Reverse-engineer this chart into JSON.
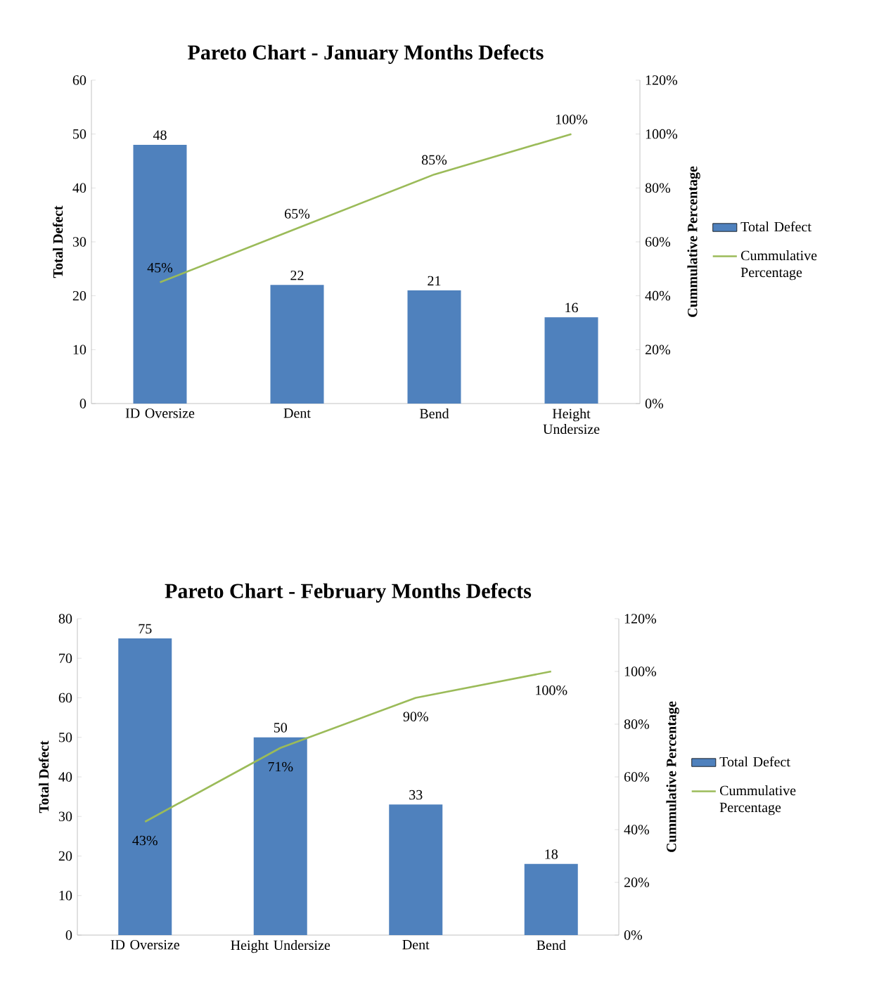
{
  "chart_data": [
    {
      "type": "bar",
      "title": "Pareto Chart - January Months Defects",
      "ylabel": "Total Defect",
      "y2label": "Cummulative Percentage",
      "categories": [
        "ID Oversize",
        "Dent",
        "Bend",
        "Height Undersize"
      ],
      "series": [
        {
          "name": "Total Defect",
          "color": "#4f81bd",
          "values": [
            48,
            22,
            21,
            16
          ],
          "value_labels": [
            "48",
            "22",
            "21",
            "16"
          ]
        },
        {
          "name": "Cummulative Percentage",
          "type": "line",
          "axis": "y2",
          "color": "#9bbb59",
          "values": [
            45,
            65,
            85,
            100
          ],
          "value_labels": [
            "45%",
            "65%",
            "85%",
            "100%"
          ]
        }
      ],
      "ylim": [
        0,
        60
      ],
      "yticks": [
        0,
        10,
        20,
        30,
        40,
        50,
        60
      ],
      "y2lim": [
        0,
        120
      ],
      "y2ticks": [
        {
          "value": 0,
          "label": "0%"
        },
        {
          "value": 20,
          "label": "20%"
        },
        {
          "value": 40,
          "label": "40%"
        },
        {
          "value": 60,
          "label": "60%"
        },
        {
          "value": 80,
          "label": "80%"
        },
        {
          "value": 100,
          "label": "100%"
        },
        {
          "value": 120,
          "label": "120%"
        }
      ],
      "legend": "right"
    },
    {
      "type": "bar",
      "title": "Pareto Chart - February Months Defects",
      "ylabel": "Total Defect",
      "y2label": "Cummulative Percentage",
      "categories": [
        "ID Oversize",
        "Height Undersize",
        "Dent",
        "Bend"
      ],
      "series": [
        {
          "name": "Total Defect",
          "color": "#4f81bd",
          "values": [
            75,
            50,
            33,
            18
          ],
          "value_labels": [
            "75",
            "50",
            "33",
            "18"
          ]
        },
        {
          "name": "Cummulative Percentage",
          "type": "line",
          "axis": "y2",
          "color": "#9bbb59",
          "values": [
            43,
            71,
            90,
            100
          ],
          "value_labels": [
            "43%",
            "71%",
            "90%",
            "100%"
          ]
        }
      ],
      "ylim": [
        0,
        80
      ],
      "yticks": [
        0,
        10,
        20,
        30,
        40,
        50,
        60,
        70,
        80
      ],
      "y2lim": [
        0,
        120
      ],
      "y2ticks": [
        {
          "value": 0,
          "label": "0%"
        },
        {
          "value": 20,
          "label": "20%"
        },
        {
          "value": 40,
          "label": "40%"
        },
        {
          "value": 60,
          "label": "60%"
        },
        {
          "value": 80,
          "label": "80%"
        },
        {
          "value": 100,
          "label": "100%"
        },
        {
          "value": 120,
          "label": "120%"
        }
      ],
      "legend": "right"
    }
  ]
}
